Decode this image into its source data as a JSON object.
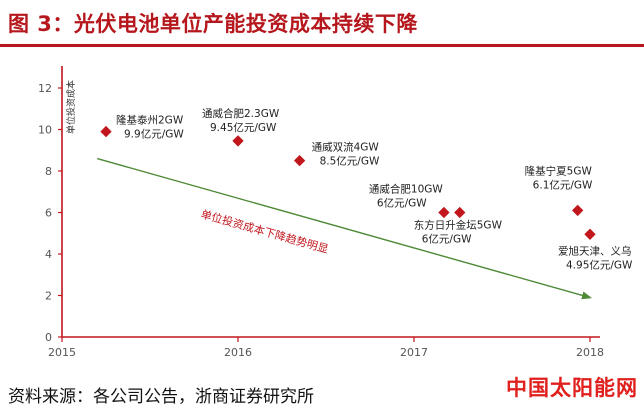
{
  "header": {
    "title": "图 3：光伏电池单位产能投资成本持续下降"
  },
  "footer": {
    "source": "资料来源：各公司公告，浙商证券研究所",
    "watermark": "中国太阳能网"
  },
  "chart_data": {
    "type": "scatter",
    "title": "",
    "xlabel": "",
    "ylabel": "单位投资成本",
    "xlim": [
      2015,
      2018
    ],
    "ylim": [
      0,
      12
    ],
    "xticks": [
      "2015",
      "2016",
      "2017",
      "2018"
    ],
    "yticks": [
      "0",
      "2",
      "4",
      "6",
      "8",
      "10",
      "12"
    ],
    "grid": false,
    "accent_color": "#c0161c",
    "trend_color": "#4f8a37",
    "series": [
      {
        "points": [
          {
            "x": 2015.25,
            "y": 9.9,
            "labels": [
              "隆基泰州2GW",
              "9.9亿元/GW"
            ]
          },
          {
            "x": 2016.0,
            "y": 9.45,
            "labels": [
              "通威合肥2.3GW",
              "9.45亿元/GW"
            ]
          },
          {
            "x": 2016.35,
            "y": 8.5,
            "labels": [
              "通威双流4GW",
              "8.5亿元/GW"
            ]
          },
          {
            "x": 2017.17,
            "y": 6.0,
            "labels": [
              "通威合肥10GW",
              "6亿元/GW"
            ]
          },
          {
            "x": 2017.26,
            "y": 6.0,
            "labels": [
              "东方日升金坛5GW",
              "6亿元/GW"
            ]
          },
          {
            "x": 2017.93,
            "y": 6.1,
            "labels": [
              "隆基宁夏5GW",
              "6.1亿元/GW"
            ]
          },
          {
            "x": 2018.0,
            "y": 4.95,
            "labels": [
              "爱旭天津、义乌",
              "4.95亿元/GW"
            ]
          }
        ]
      }
    ],
    "trend": {
      "label": "单位投资成本下降趋势明显",
      "start": {
        "x": 2015.2,
        "y": 8.6
      },
      "end": {
        "x": 2018.0,
        "y": 1.9
      }
    }
  }
}
